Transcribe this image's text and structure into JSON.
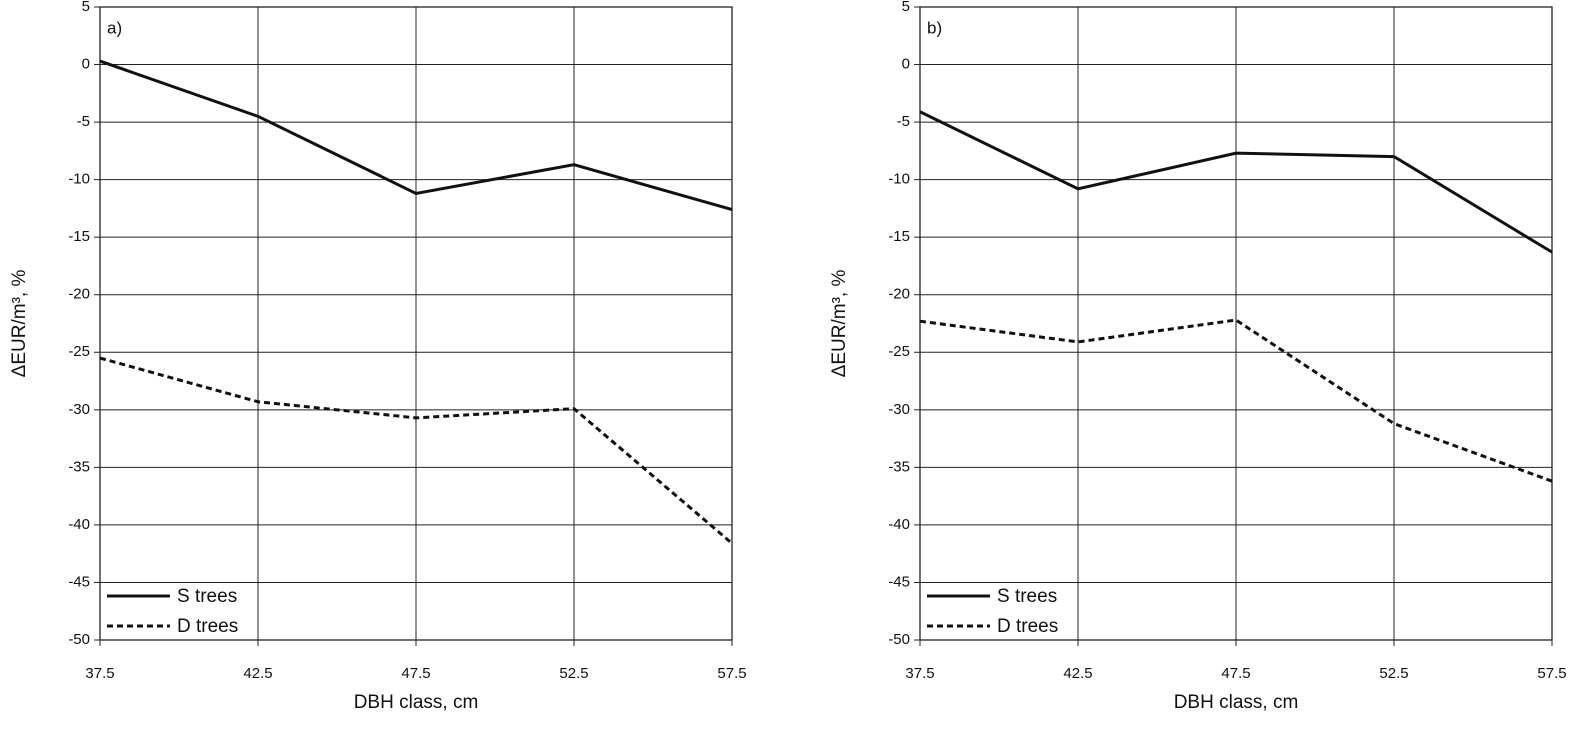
{
  "chart_data": [
    {
      "type": "line",
      "annotation": "a)",
      "x_label": "DBH class, cm",
      "y_label": "ΔEUR/m³, %",
      "x": [
        37.5,
        42.5,
        47.5,
        52.5,
        57.5
      ],
      "xlim": [
        37.5,
        57.5
      ],
      "xticks": [
        37.5,
        42.5,
        47.5,
        52.5,
        57.5
      ],
      "ylim": [
        -50,
        5
      ],
      "yticks": [
        5,
        0,
        -5,
        -10,
        -15,
        -20,
        -25,
        -30,
        -35,
        -40,
        -45,
        -50
      ],
      "grid": true,
      "legend": "lower left",
      "series": [
        {
          "name": "S trees",
          "color": "#111111",
          "dash": "solid",
          "values": [
            0.3,
            -4.5,
            -11.2,
            -8.7,
            -12.6
          ]
        },
        {
          "name": "D trees",
          "color": "#111111",
          "dash": "dashed",
          "values": [
            -25.5,
            -29.3,
            -30.7,
            -29.9,
            -41.6
          ]
        }
      ]
    },
    {
      "type": "line",
      "annotation": "b)",
      "x_label": "DBH class, cm",
      "y_label": "ΔEUR/m³, %",
      "x": [
        37.5,
        42.5,
        47.5,
        52.5,
        57.5
      ],
      "xlim": [
        37.5,
        57.5
      ],
      "xticks": [
        37.5,
        42.5,
        47.5,
        52.5,
        57.5
      ],
      "ylim": [
        -50,
        5
      ],
      "yticks": [
        5,
        0,
        -5,
        -10,
        -15,
        -20,
        -25,
        -30,
        -35,
        -40,
        -45,
        -50
      ],
      "grid": true,
      "legend": "lower left",
      "series": [
        {
          "name": "S trees",
          "color": "#111111",
          "dash": "solid",
          "values": [
            -4.1,
            -10.8,
            -7.7,
            -8.0,
            -16.3
          ]
        },
        {
          "name": "D trees",
          "color": "#111111",
          "dash": "dashed",
          "values": [
            -22.3,
            -24.1,
            -22.2,
            -31.2,
            -36.2
          ]
        }
      ]
    }
  ]
}
